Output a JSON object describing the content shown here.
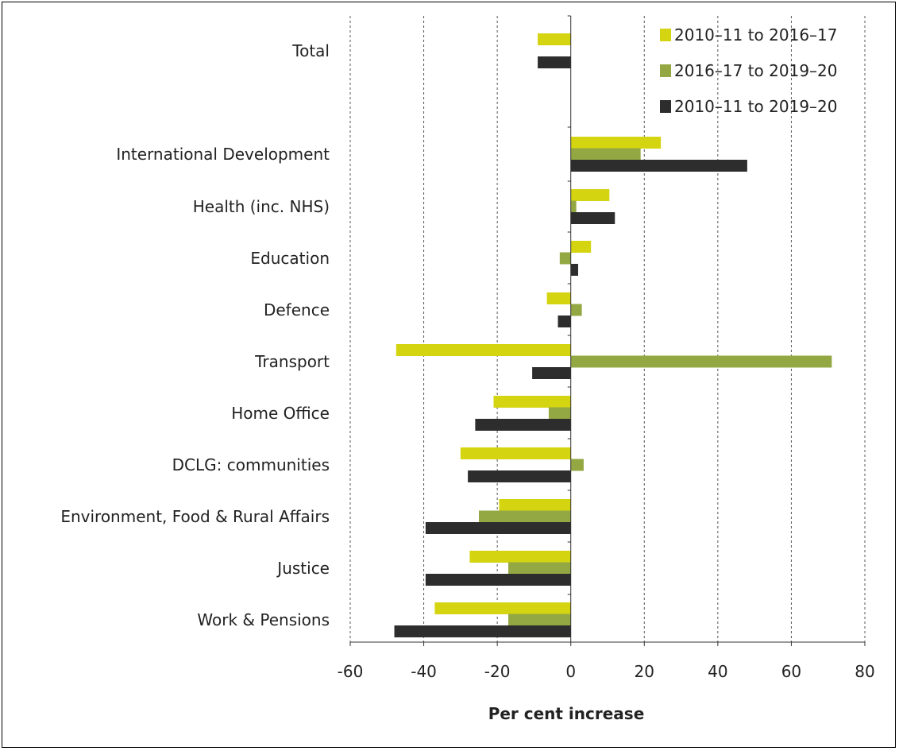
{
  "chart_data": {
    "type": "bar",
    "orientation": "horizontal",
    "categories": [
      "Total",
      "International Development",
      "Health (inc. NHS)",
      "Education",
      "Defence",
      "Transport",
      "Home Office",
      "DCLG: communities",
      "Environment, Food & Rural Affairs",
      "Justice",
      "Work & Pensions"
    ],
    "series": [
      {
        "name": "2010–11 to 2016–17",
        "color": "#d4d410",
        "values": [
          -9,
          24.5,
          10.5,
          5.5,
          -6.5,
          -47.5,
          -21,
          -30,
          -19.5,
          -27.5,
          -37
        ]
      },
      {
        "name": "2016–17 to 2019–20",
        "color": "#93a843",
        "values": [
          null,
          19,
          1.5,
          -3,
          3,
          71,
          -6,
          3.5,
          -25,
          -17,
          -17
        ]
      },
      {
        "name": "2010–11 to 2019–20",
        "color": "#2d2d2d",
        "values": [
          -9,
          48,
          12,
          2,
          -3.5,
          -10.5,
          -26,
          -28,
          -39.5,
          -39.5,
          -48
        ]
      }
    ],
    "xlabel": "Per cent increase",
    "ylabel": "",
    "xlim": [
      -60,
      80
    ],
    "xticks": [
      "-60",
      "-40",
      "-20",
      "0",
      "20",
      "40",
      "60",
      "80"
    ],
    "grid": "vertical dashed",
    "legend_position": "top-right"
  }
}
